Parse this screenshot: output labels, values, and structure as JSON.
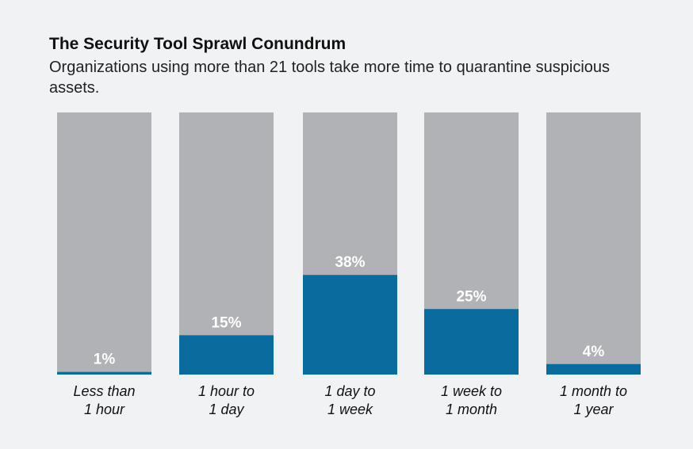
{
  "chart_data": {
    "type": "bar",
    "title": "The Security Tool Sprawl Conundrum",
    "subtitle": "Organizations using more than 21 tools take more time to quarantine suspicious assets.",
    "categories": [
      [
        "Less than",
        "1 hour"
      ],
      [
        "1 hour to",
        "1 day"
      ],
      [
        "1 day to",
        "1 week"
      ],
      [
        "1 week to",
        "1 month"
      ],
      [
        "1 month to",
        "1 year"
      ]
    ],
    "values": [
      1,
      15,
      38,
      25,
      4
    ],
    "value_labels": [
      "1%",
      "15%",
      "38%",
      "25%",
      "4%"
    ],
    "ylim": [
      0,
      100
    ],
    "colors": {
      "bar": "#0a6b9e",
      "track": "#b1b2b5",
      "background": "#f1f2f4"
    }
  }
}
